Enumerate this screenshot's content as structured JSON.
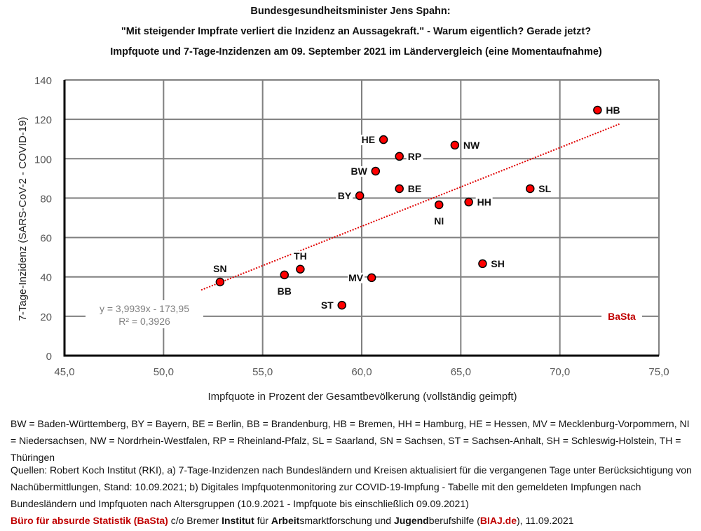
{
  "header": {
    "title_line1": "Bundesgesundheitsminister Jens Spahn:",
    "title_line2": "\"Mit steigender Impfrate verliert die Inzidenz an Aussagekraft.\" - Warum eigentlich? Gerade jetzt?",
    "title_line3": "Impfquote und 7-Tage-Inzidenzen am 09. September 2021 im Ländervergleich (eine Momentaufnahme)"
  },
  "chart_data": {
    "type": "scatter",
    "title": "Impfquote und 7-Tage-Inzidenzen am 09. September 2021 im Ländervergleich (eine Momentaufnahme)",
    "xlabel": "Impfquote in Prozent der Gesamtbevölkerung (vollständig geimpft)",
    "ylabel": "7-Tage-Inzidenz (SARS-CoV-2 - COVID-19)",
    "xlim": [
      45,
      75
    ],
    "ylim": [
      0,
      140
    ],
    "x_ticks": [
      "45,0",
      "50,0",
      "55,0",
      "60,0",
      "65,0",
      "70,0",
      "75,0"
    ],
    "x_tick_values": [
      45,
      50,
      55,
      60,
      65,
      70,
      75
    ],
    "y_ticks": [
      "0",
      "20",
      "40",
      "60",
      "80",
      "100",
      "120",
      "140"
    ],
    "y_tick_values": [
      0,
      20,
      40,
      60,
      80,
      100,
      120,
      140
    ],
    "grid": true,
    "marker_color": "#ff0000",
    "trend_color": "#e00000",
    "points": [
      {
        "label": "HB",
        "x": 71.9,
        "y": 124.7,
        "pos": "right"
      },
      {
        "label": "HE",
        "x": 61.1,
        "y": 109.7,
        "pos": "left"
      },
      {
        "label": "NW",
        "x": 64.7,
        "y": 106.9,
        "pos": "right"
      },
      {
        "label": "RP",
        "x": 61.9,
        "y": 101.2,
        "pos": "right"
      },
      {
        "label": "BW",
        "x": 60.7,
        "y": 93.7,
        "pos": "left"
      },
      {
        "label": "BE",
        "x": 61.9,
        "y": 84.8,
        "pos": "right"
      },
      {
        "label": "SL",
        "x": 68.5,
        "y": 84.8,
        "pos": "right"
      },
      {
        "label": "BY",
        "x": 59.9,
        "y": 81.2,
        "pos": "left"
      },
      {
        "label": "HH",
        "x": 65.4,
        "y": 78.0,
        "pos": "right"
      },
      {
        "label": "NI",
        "x": 63.9,
        "y": 76.6,
        "pos": "below"
      },
      {
        "label": "SH",
        "x": 66.1,
        "y": 46.7,
        "pos": "right"
      },
      {
        "label": "TH",
        "x": 56.9,
        "y": 43.9,
        "pos": "above"
      },
      {
        "label": "BB",
        "x": 56.1,
        "y": 41.0,
        "pos": "below"
      },
      {
        "label": "MV",
        "x": 60.5,
        "y": 39.6,
        "pos": "left"
      },
      {
        "label": "SN",
        "x": 52.85,
        "y": 37.4,
        "pos": "above"
      },
      {
        "label": "ST",
        "x": 59.0,
        "y": 25.6,
        "pos": "left"
      }
    ],
    "trendline": {
      "slope": 3.9939,
      "intercept": -173.95,
      "x_start": 51.9,
      "x_end": 73.0,
      "equation": "y = 3,9939x - 173,95",
      "r_squared_label": "R² = 0,3926"
    },
    "watermark": "BaSta"
  },
  "footer": {
    "legend_text": "BW = Baden-Württemberg, BY = Bayern, BE = Berlin, BB = Brandenburg, HB = Bremen, HH = Hamburg, HE = Hessen, MV = Mecklenburg-Vorpommern, NI = Niedersachsen, NW = Nordrhein-Westfalen, RP = Rheinland-Pfalz, SL = Saarland, SN = Sachsen, ST = Sachsen-Anhalt, SH = Schleswig-Holstein, TH = Thüringen",
    "sources_text": "Quellen: Robert Koch Institut (RKI), a) 7-Tage-Inzidenzen nach Bundesländern und Kreisen aktualisiert für die vergangenen Tage unter Berücksichtigung von Nachübermittlungen, Stand: 10.09.2021; b) Digitales Impfquotenmonitoring zur COVID-19-Impfung - Tabelle mit den gemeldeten Impfungen nach Bundesländern und Impfquoten nach Altersgruppen (10.9.2021 - Impfquote bis einschließlich 09.09.2021)",
    "credit": {
      "basta": "Büro für absurde Statistik (BaSta)",
      "co": " c/o Bremer ",
      "institut": "Institut",
      "fuer": " für ",
      "arbeit": "Arbeit",
      "smarkt": "smarktforschung und ",
      "jugend": "Jugend",
      "berufs": "berufshilfe (",
      "biaj": "BIAJ.de",
      "date": "), 11.09.2021"
    }
  }
}
